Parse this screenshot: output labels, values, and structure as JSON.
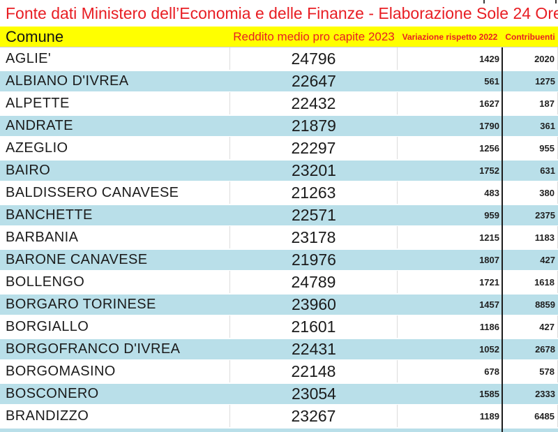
{
  "title": "Fonte dati Ministero dell’Economia e delle Finanze - Elaborazione Sole 24 Ore",
  "colors": {
    "accent_red": "#e81d23",
    "header_bg": "#ffff00",
    "row_alt_blue": "#b9dfe9",
    "gridline": "#dcdcdc",
    "divider": "#1c1c1c",
    "text": "#1b1b1b"
  },
  "chart_data": {
    "type": "table",
    "title": "Fonte dati Ministero dell’Economia e delle Finanze - Elaborazione Sole 24 Ore",
    "columns": [
      "Comune",
      "Reddito medio pro capite 2023",
      "Variazione rispetto 2022",
      "Contribuenti"
    ],
    "rows": [
      [
        "AGLIE'",
        24796,
        1429,
        2020
      ],
      [
        "ALBIANO D'IVREA",
        22647,
        561,
        1275
      ],
      [
        "ALPETTE",
        22432,
        1627,
        187
      ],
      [
        "ANDRATE",
        21879,
        1790,
        361
      ],
      [
        "AZEGLIO",
        22297,
        1256,
        955
      ],
      [
        "BAIRO",
        23201,
        1752,
        631
      ],
      [
        "BALDISSERO CANAVESE",
        21263,
        483,
        380
      ],
      [
        "BANCHETTE",
        22571,
        959,
        2375
      ],
      [
        "BARBANIA",
        23178,
        1215,
        1183
      ],
      [
        "BARONE CANAVESE",
        21976,
        1807,
        427
      ],
      [
        "BOLLENGO",
        24789,
        1721,
        1618
      ],
      [
        "BORGARO TORINESE",
        23960,
        1457,
        8859
      ],
      [
        "BORGIALLO",
        21601,
        1186,
        427
      ],
      [
        "BORGOFRANCO D'IVREA",
        22431,
        1052,
        2678
      ],
      [
        "BORGOMASINO",
        22148,
        678,
        578
      ],
      [
        "BOSCONERO",
        23054,
        1585,
        2333
      ],
      [
        "BRANDIZZO",
        23267,
        1189,
        6485
      ]
    ],
    "layout": {
      "zebra": "odd rows pale blue starting from second data row",
      "col_alignment": [
        "left",
        "center",
        "right",
        "right"
      ]
    }
  }
}
